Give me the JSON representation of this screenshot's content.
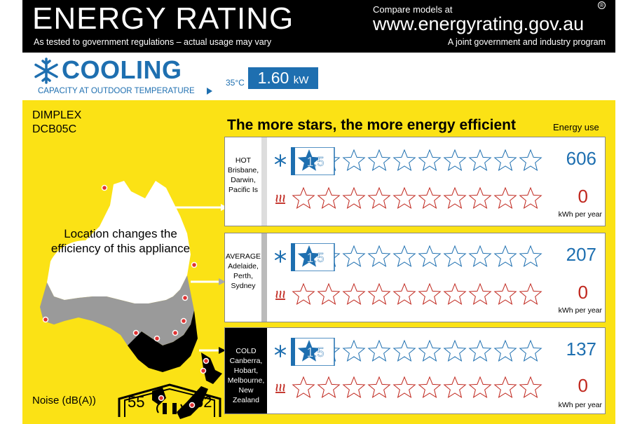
{
  "header": {
    "title": "ENERGY RATING",
    "subtitle": "As tested to government regulations – actual usage may vary",
    "compare": "Compare models at",
    "url": "www.energyrating.gov.au",
    "joint": "A joint government and industry program",
    "reg": "®"
  },
  "cooling": {
    "title": "COOLING",
    "subtitle": "CAPACITY AT OUTDOOR TEMPERATURE",
    "temperature": "35°C",
    "capacity_value": "1.60",
    "capacity_unit": "kW"
  },
  "product": {
    "brand": "DIMPLEX",
    "model": "DCB05C"
  },
  "tagline": "The more stars, the more energy efficient",
  "energy_use_header": "Energy use",
  "map_text": "Location changes the efficiency of this appliance",
  "noise": {
    "label": "Noise (dB(A))",
    "indoor": "55",
    "outdoor": "62"
  },
  "zones": [
    {
      "title": "HOT",
      "places": "Brisbane, Darwin, Pacific Is",
      "cool_stars": "1.5",
      "cool_stars_value": 1.5,
      "heat_stars_value": 0,
      "cool_use": "606",
      "heat_use": "0",
      "unit": "kWh per year"
    },
    {
      "title": "AVERAGE",
      "places": "Adelaide, Perth, Sydney",
      "cool_stars": "1.5",
      "cool_stars_value": 1.5,
      "heat_stars_value": 0,
      "cool_use": "207",
      "heat_use": "0",
      "unit": "kWh per year"
    },
    {
      "title": "COLD",
      "places": "Canberra, Hobart, Melbourne, New Zealand",
      "cool_stars": "1.5",
      "cool_stars_value": 1.5,
      "heat_stars_value": 0,
      "cool_use": "137",
      "heat_use": "0",
      "unit": "kWh per year"
    }
  ],
  "colors": {
    "cool_blue": "#1e6fb0",
    "heat_red": "#c0271e",
    "label_yellow": "#fbe215"
  },
  "icons": {
    "cooling": "snowflake-icon",
    "heating": "heat-waves-icon"
  }
}
